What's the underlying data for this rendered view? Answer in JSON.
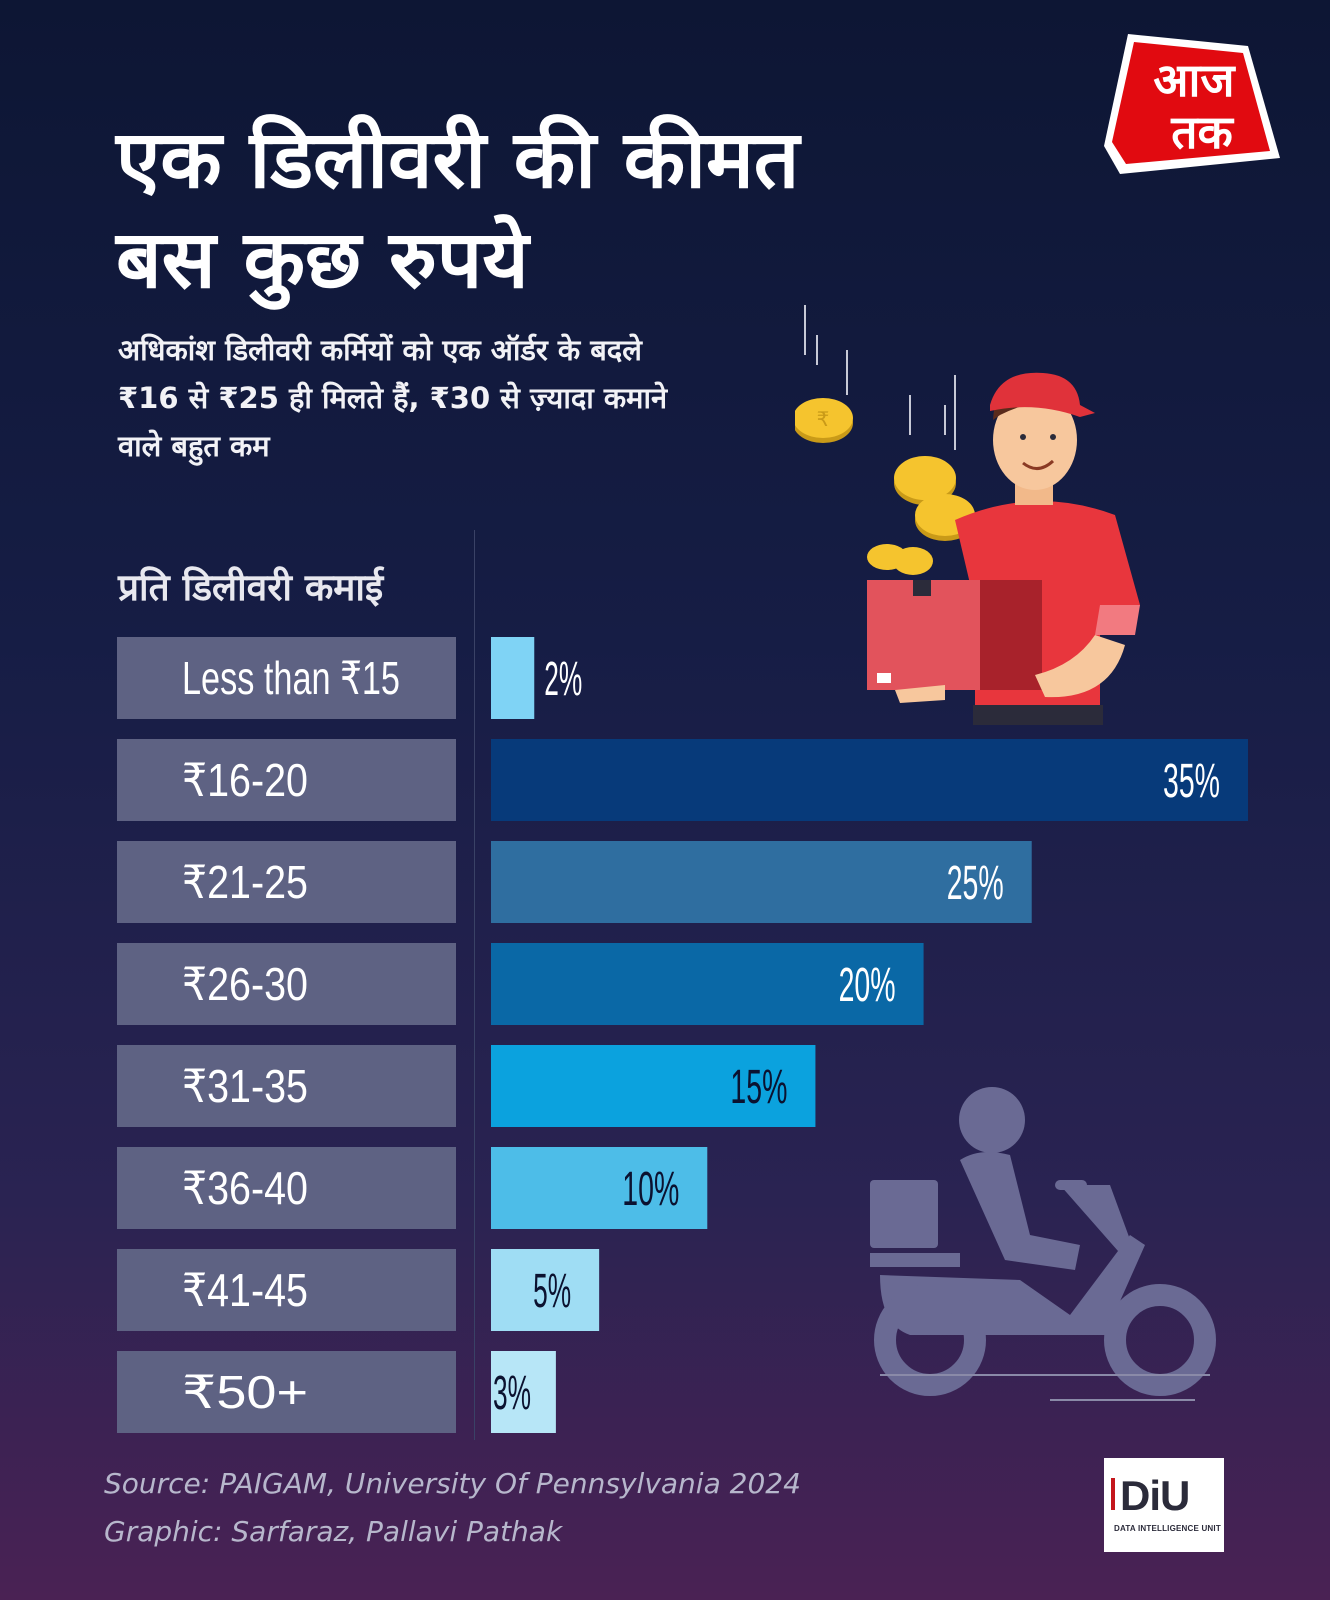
{
  "brand": {
    "logo_text": "आज तक",
    "unit_mark": "DiU",
    "unit_name": "DATA INTELLIGENCE UNIT"
  },
  "headline": {
    "line1": "एक डिलीवरी की कीमत",
    "line2": "बस कुछ रुपये"
  },
  "subtitle": "अधिकांश डिलीवरी कर्मियों को एक ऑर्डर के बदले ₹16 से ₹25 ही मिलते हैं, ₹30 से ज़्यादा कमाने वाले बहुत कम",
  "axis_heading": "प्रति डिलीवरी कमाई",
  "footer": {
    "source": "Source: PAIGAM, University Of Pennsylvania 2024",
    "graphic": "Graphic:  Sarfaraz, Pallavi Pathak"
  },
  "icons": [
    "aaj-tak-logo-icon",
    "delivery-man-icon",
    "rupee-coin-icon",
    "scooter-rider-icon"
  ],
  "chart_data": {
    "type": "bar",
    "orientation": "horizontal",
    "ylabel": "प्रति डिलीवरी कमाई",
    "categories": [
      "Less than ₹15",
      "₹16-20",
      "₹21-25",
      "₹26-30",
      "₹31-35",
      "₹36-40",
      "₹41-45",
      "₹50+"
    ],
    "values": [
      2,
      35,
      25,
      20,
      15,
      10,
      5,
      3
    ],
    "value_labels": [
      "2%",
      "35%",
      "25%",
      "20%",
      "15%",
      "10%",
      "5%",
      "3%"
    ],
    "bar_colors": [
      "#7fd3f5",
      "#073a7a",
      "#2f6ea0",
      "#0a68a6",
      "#0ba2de",
      "#4dbde8",
      "#9fddf4",
      "#b7e6f7"
    ],
    "label_colors": [
      "#ffffff",
      "#ffffff",
      "#ffffff",
      "#ffffff",
      "#0b1230",
      "#0b1230",
      "#0b1230",
      "#0b1230"
    ],
    "label_position": [
      "outside",
      "inside",
      "inside",
      "inside",
      "inside",
      "inside",
      "inside",
      "inside"
    ],
    "category_box_color": "#5e6283",
    "xlim": [
      0,
      35
    ],
    "grid": false,
    "legend": "none"
  }
}
